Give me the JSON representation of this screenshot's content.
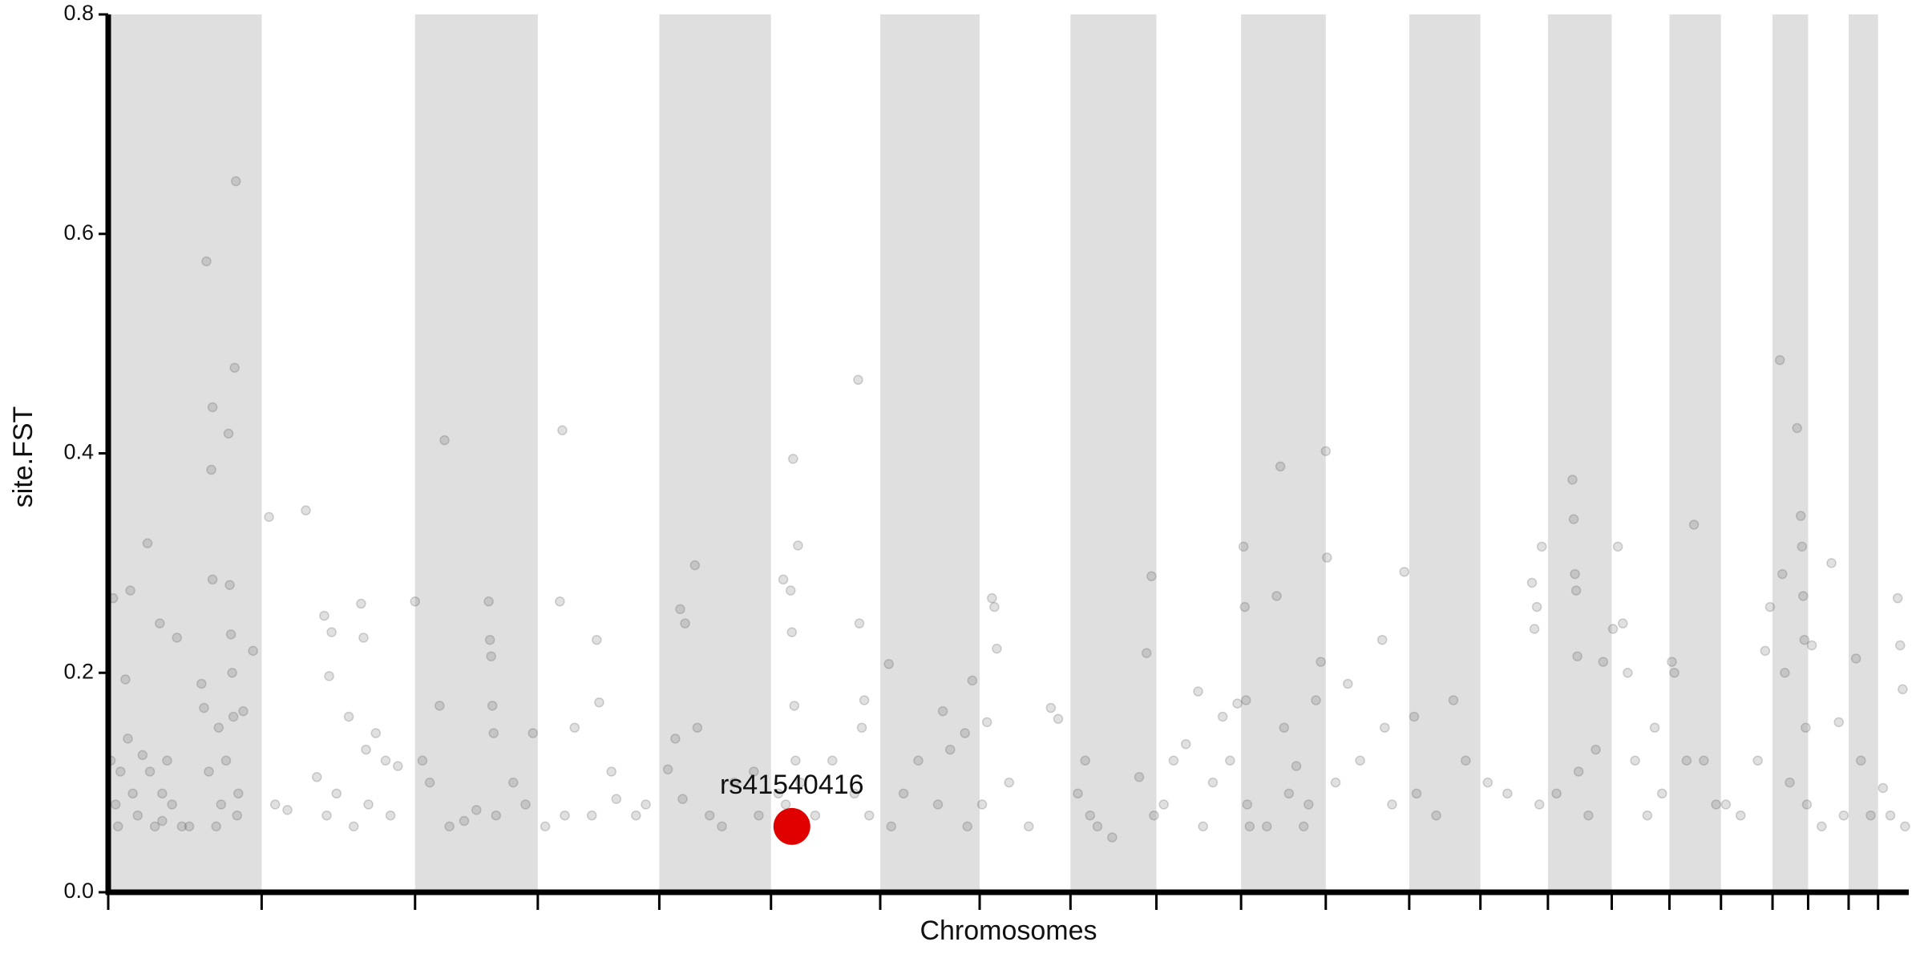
{
  "chart_data": {
    "type": "scatter",
    "xlabel": "Chromosomes",
    "ylabel": "site.FST",
    "xlim": [
      0,
      1467
    ],
    "ylim": [
      0,
      0.8
    ],
    "xticks": [
      0,
      125,
      250,
      350,
      449,
      540,
      629,
      710,
      784,
      854,
      923,
      992,
      1060,
      1118,
      1173,
      1225,
      1272,
      1314,
      1356,
      1385,
      1418,
      1442
    ],
    "yticks": [
      {
        "value": 0,
        "label": "0.0"
      },
      0.2,
      0.4,
      0.6,
      0.8
    ],
    "alternating_shade": "#dfdfdf",
    "color": "#555555",
    "x": [
      2,
      4,
      6,
      8,
      10,
      14,
      16,
      18,
      20,
      24,
      28,
      32,
      34,
      38,
      42,
      44,
      44,
      48,
      52,
      56,
      60,
      66,
      76,
      78,
      80,
      82,
      84,
      85,
      85,
      88,
      90,
      92,
      96,
      98,
      99,
      100,
      101,
      102,
      103,
      104,
      105,
      106,
      110,
      118,
      131,
      136,
      146,
      161,
      170,
      176,
      178,
      180,
      182,
      186,
      196,
      200,
      206,
      208,
      210,
      212,
      218,
      226,
      230,
      236,
      250,
      256,
      262,
      270,
      274,
      278,
      290,
      300,
      310,
      311,
      312,
      313,
      314,
      316,
      330,
      340,
      346,
      356,
      368,
      370,
      372,
      380,
      394,
      398,
      400,
      410,
      414,
      430,
      438,
      456,
      462,
      466,
      468,
      470,
      478,
      480,
      490,
      500,
      510,
      526,
      530,
      546,
      550,
      552,
      556,
      557,
      558,
      559,
      560,
      562,
      564,
      576,
      590,
      608,
      611,
      612,
      614,
      616,
      620,
      636,
      638,
      648,
      660,
      676,
      680,
      686,
      698,
      700,
      704,
      712,
      716,
      720,
      722,
      724,
      734,
      750,
      768,
      774,
      790,
      796,
      800,
      806,
      818,
      840,
      846,
      850,
      852,
      860,
      868,
      878,
      888,
      892,
      900,
      908,
      914,
      920,
      925,
      926,
      927,
      928,
      930,
      944,
      952,
      955,
      958,
      962,
      968,
      974,
      978,
      984,
      988,
      992,
      993,
      1000,
      1010,
      1020,
      1038,
      1040,
      1046,
      1056,
      1064,
      1066,
      1082,
      1096,
      1106,
      1124,
      1140,
      1160,
      1162,
      1164,
      1166,
      1168,
      1180,
      1193,
      1194,
      1195,
      1196,
      1197,
      1198,
      1206,
      1212,
      1218,
      1226,
      1230,
      1234,
      1238,
      1244,
      1254,
      1260,
      1266,
      1274,
      1276,
      1286,
      1292,
      1300,
      1310,
      1318,
      1330,
      1344,
      1350,
      1354,
      1362,
      1364,
      1366,
      1370,
      1376,
      1379,
      1380,
      1381,
      1382,
      1383,
      1384,
      1388,
      1396,
      1404,
      1410,
      1414,
      1424,
      1428,
      1436,
      1446,
      1452,
      1458,
      1460,
      1462,
      1464
    ],
    "values": [
      0.12,
      0.268,
      0.08,
      0.06,
      0.11,
      0.194,
      0.14,
      0.275,
      0.09,
      0.07,
      0.125,
      0.318,
      0.11,
      0.06,
      0.245,
      0.09,
      0.065,
      0.12,
      0.08,
      0.232,
      0.06,
      0.06,
      0.19,
      0.168,
      0.575,
      0.11,
      0.385,
      0.442,
      0.285,
      0.06,
      0.15,
      0.08,
      0.12,
      0.418,
      0.28,
      0.235,
      0.2,
      0.16,
      0.478,
      0.648,
      0.07,
      0.09,
      0.165,
      0.22,
      0.342,
      0.08,
      0.075,
      0.348,
      0.105,
      0.252,
      0.07,
      0.197,
      0.237,
      0.09,
      0.16,
      0.06,
      0.263,
      0.232,
      0.13,
      0.08,
      0.145,
      0.12,
      0.07,
      0.115,
      0.265,
      0.12,
      0.1,
      0.17,
      0.412,
      0.06,
      0.065,
      0.075,
      0.265,
      0.23,
      0.215,
      0.17,
      0.145,
      0.07,
      0.1,
      0.08,
      0.145,
      0.06,
      0.265,
      0.421,
      0.07,
      0.15,
      0.07,
      0.23,
      0.173,
      0.11,
      0.085,
      0.07,
      0.08,
      0.112,
      0.14,
      0.258,
      0.085,
      0.245,
      0.298,
      0.15,
      0.07,
      0.06,
      0.1,
      0.11,
      0.07,
      0.09,
      0.285,
      0.08,
      0.275,
      0.237,
      0.395,
      0.17,
      0.12,
      0.316,
      0.1,
      0.07,
      0.12,
      0.09,
      0.467,
      0.245,
      0.15,
      0.175,
      0.07,
      0.208,
      0.06,
      0.09,
      0.12,
      0.08,
      0.165,
      0.13,
      0.145,
      0.06,
      0.193,
      0.08,
      0.155,
      0.268,
      0.26,
      0.222,
      0.1,
      0.06,
      0.168,
      0.158,
      0.09,
      0.12,
      0.07,
      0.06,
      0.05,
      0.105,
      0.218,
      0.288,
      0.07,
      0.08,
      0.12,
      0.135,
      0.183,
      0.06,
      0.1,
      0.16,
      0.12,
      0.172,
      0.315,
      0.26,
      0.175,
      0.08,
      0.06,
      0.06,
      0.27,
      0.388,
      0.15,
      0.09,
      0.115,
      0.06,
      0.08,
      0.175,
      0.21,
      0.402,
      0.305,
      0.1,
      0.19,
      0.12,
      0.23,
      0.15,
      0.08,
      0.292,
      0.16,
      0.09,
      0.07,
      0.175,
      0.12,
      0.1,
      0.09,
      0.282,
      0.24,
      0.26,
      0.08,
      0.315,
      0.09,
      0.376,
      0.34,
      0.29,
      0.275,
      0.215,
      0.11,
      0.07,
      0.13,
      0.21,
      0.24,
      0.315,
      0.245,
      0.2,
      0.12,
      0.07,
      0.15,
      0.09,
      0.21,
      0.2,
      0.12,
      0.335,
      0.12,
      0.08,
      0.08,
      0.07,
      0.12,
      0.22,
      0.26,
      0.485,
      0.29,
      0.2,
      0.1,
      0.423,
      0.343,
      0.315,
      0.27,
      0.23,
      0.15,
      0.08,
      0.225,
      0.06,
      0.3,
      0.155,
      0.07,
      0.213,
      0.12,
      0.07,
      0.095,
      0.07,
      0.268,
      0.225,
      0.185,
      0.06
    ],
    "highlight": {
      "label": "rs41540416",
      "x": 557,
      "value": 0.06,
      "color": "#e00000"
    }
  }
}
